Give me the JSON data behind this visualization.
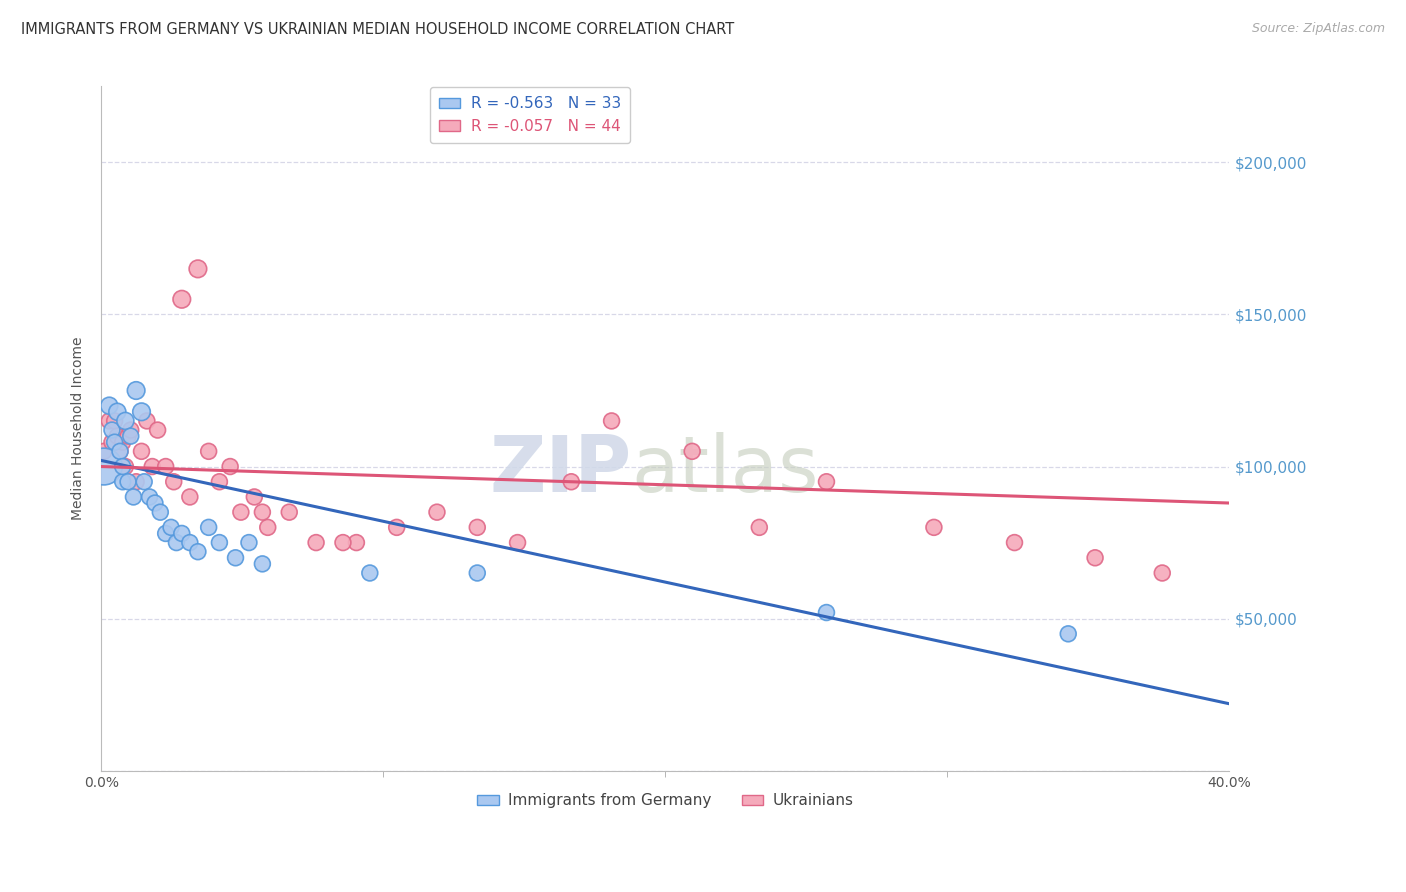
{
  "title": "IMMIGRANTS FROM GERMANY VS UKRAINIAN MEDIAN HOUSEHOLD INCOME CORRELATION CHART",
  "source": "Source: ZipAtlas.com",
  "ylabel": "Median Household Income",
  "yticks": [
    0,
    50000,
    100000,
    150000,
    200000
  ],
  "ytick_labels": [
    "",
    "$50,000",
    "$100,000",
    "$150,000",
    "$200,000"
  ],
  "xlim": [
    0.0,
    0.42
  ],
  "ylim": [
    0,
    225000
  ],
  "legend1_r": "-0.563",
  "legend1_n": "33",
  "legend2_r": "-0.057",
  "legend2_n": "44",
  "blue_fill": "#aac8f0",
  "pink_fill": "#f5aabb",
  "blue_edge": "#5599dd",
  "pink_edge": "#e06888",
  "blue_line_color": "#3366bb",
  "pink_line_color": "#dd5577",
  "watermark_zip": "ZIP",
  "watermark_atlas": "atlas",
  "background_color": "#ffffff",
  "grid_color": "#d8d8e8",
  "title_fontsize": 10.5,
  "axis_label_color": "#5599cc",
  "blue_scatter_x": [
    0.001,
    0.003,
    0.004,
    0.005,
    0.006,
    0.007,
    0.008,
    0.008,
    0.009,
    0.01,
    0.011,
    0.012,
    0.013,
    0.015,
    0.016,
    0.018,
    0.02,
    0.022,
    0.024,
    0.026,
    0.028,
    0.03,
    0.033,
    0.036,
    0.04,
    0.044,
    0.05,
    0.055,
    0.06,
    0.1,
    0.14,
    0.27,
    0.36
  ],
  "blue_scatter_y": [
    100000,
    120000,
    112000,
    108000,
    118000,
    105000,
    95000,
    100000,
    115000,
    95000,
    110000,
    90000,
    125000,
    118000,
    95000,
    90000,
    88000,
    85000,
    78000,
    80000,
    75000,
    78000,
    75000,
    72000,
    80000,
    75000,
    70000,
    75000,
    68000,
    65000,
    65000,
    52000,
    45000
  ],
  "blue_scatter_size": [
    700,
    150,
    130,
    130,
    150,
    130,
    130,
    130,
    150,
    130,
    130,
    130,
    160,
    160,
    130,
    130,
    130,
    130,
    130,
    130,
    130,
    130,
    130,
    130,
    130,
    130,
    130,
    130,
    130,
    130,
    130,
    130,
    130
  ],
  "pink_scatter_x": [
    0.001,
    0.003,
    0.004,
    0.005,
    0.006,
    0.007,
    0.008,
    0.009,
    0.01,
    0.011,
    0.013,
    0.015,
    0.017,
    0.019,
    0.021,
    0.024,
    0.027,
    0.03,
    0.033,
    0.036,
    0.04,
    0.044,
    0.048,
    0.052,
    0.057,
    0.062,
    0.07,
    0.08,
    0.095,
    0.11,
    0.14,
    0.175,
    0.22,
    0.27,
    0.31,
    0.34,
    0.37,
    0.395,
    0.19,
    0.245,
    0.155,
    0.125,
    0.09,
    0.06
  ],
  "pink_scatter_y": [
    105000,
    115000,
    108000,
    115000,
    110000,
    105000,
    108000,
    100000,
    110000,
    112000,
    95000,
    105000,
    115000,
    100000,
    112000,
    100000,
    95000,
    155000,
    90000,
    165000,
    105000,
    95000,
    100000,
    85000,
    90000,
    80000,
    85000,
    75000,
    75000,
    80000,
    80000,
    95000,
    105000,
    95000,
    80000,
    75000,
    70000,
    65000,
    115000,
    80000,
    75000,
    85000,
    75000,
    85000
  ],
  "pink_scatter_size": [
    130,
    130,
    130,
    130,
    130,
    130,
    130,
    130,
    130,
    130,
    130,
    130,
    130,
    130,
    130,
    130,
    130,
    160,
    130,
    160,
    130,
    130,
    130,
    130,
    130,
    130,
    130,
    130,
    130,
    130,
    130,
    130,
    130,
    130,
    130,
    130,
    130,
    130,
    130,
    130,
    130,
    130,
    130,
    130
  ],
  "blue_line_x0": 0.0,
  "blue_line_y0": 102000,
  "blue_line_x1": 0.42,
  "blue_line_y1": 22000,
  "pink_line_x0": 0.0,
  "pink_line_y0": 100000,
  "pink_line_x1": 0.42,
  "pink_line_y1": 88000
}
